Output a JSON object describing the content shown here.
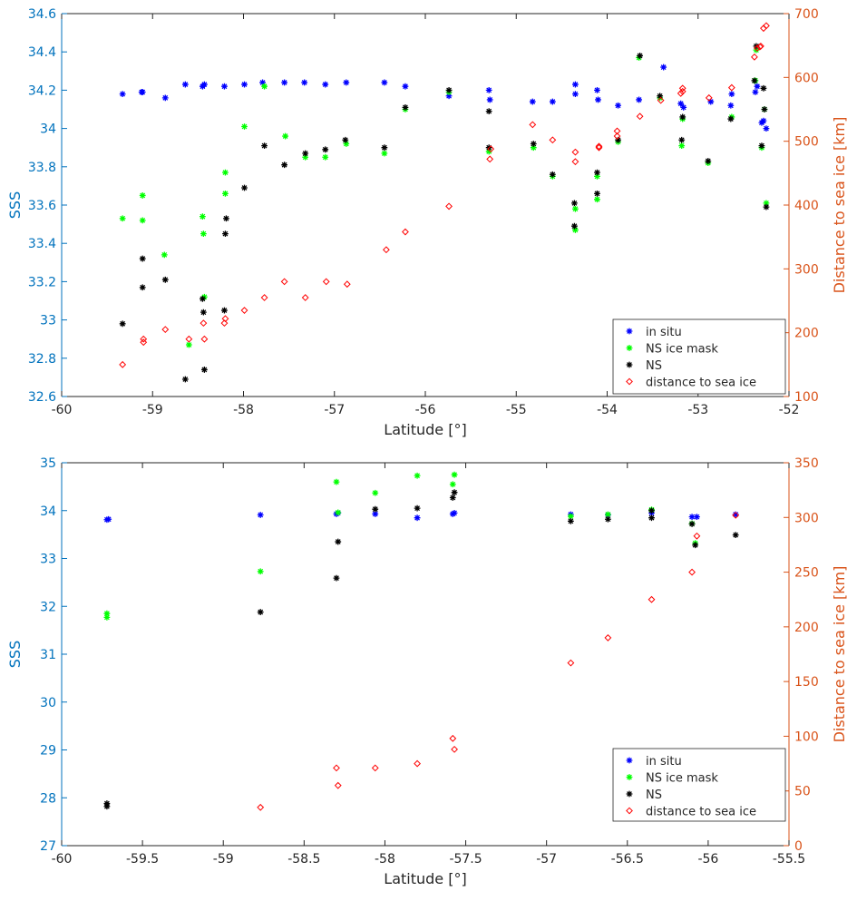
{
  "colors": {
    "in_situ": "#0000ff",
    "ns_ice_mask": "#00ff00",
    "ns": "#000000",
    "distance": "#ff0000",
    "left_axis": "#0072bd",
    "right_axis": "#d95319"
  },
  "chart_data": [
    {
      "type": "scatter",
      "xlabel": "Latitude [°]",
      "ylabel": "SSS",
      "y2label": "Distance to sea ice [km]",
      "xlim": [
        -60,
        -52
      ],
      "ylim": [
        32.6,
        34.6
      ],
      "y2lim": [
        100,
        700
      ],
      "xticks": [
        "-60",
        "-59",
        "-58",
        "-57",
        "-56",
        "-55",
        "-54",
        "-53",
        "-52"
      ],
      "yticks": [
        "32.6",
        "32.8",
        "33",
        "33.2",
        "33.4",
        "33.6",
        "33.8",
        "34",
        "34.2",
        "34.4",
        "34.6"
      ],
      "y2ticks": [
        "100",
        "200",
        "300",
        "400",
        "500",
        "600",
        "700"
      ],
      "legend": [
        "in situ",
        "NS ice mask",
        "NS",
        "distance to sea ice"
      ],
      "legend_location": "bottom-right",
      "grid": false,
      "series": [
        {
          "name": "in situ",
          "axis": "left",
          "marker": "star",
          "color": "#0000ff",
          "points": [
            [
              -59.33,
              34.18
            ],
            [
              -59.12,
              34.19
            ],
            [
              -59.11,
              34.19
            ],
            [
              -58.86,
              34.16
            ],
            [
              -58.64,
              34.23
            ],
            [
              -58.45,
              34.22
            ],
            [
              -58.43,
              34.23
            ],
            [
              -58.21,
              34.22
            ],
            [
              -57.99,
              34.23
            ],
            [
              -57.79,
              34.24
            ],
            [
              -57.55,
              34.24
            ],
            [
              -57.33,
              34.24
            ],
            [
              -57.1,
              34.23
            ],
            [
              -56.87,
              34.24
            ],
            [
              -56.45,
              34.24
            ],
            [
              -56.22,
              34.22
            ],
            [
              -55.74,
              34.17
            ],
            [
              -55.3,
              34.2
            ],
            [
              -55.29,
              34.15
            ],
            [
              -54.82,
              34.14
            ],
            [
              -54.6,
              34.14
            ],
            [
              -54.35,
              34.23
            ],
            [
              -54.35,
              34.18
            ],
            [
              -54.11,
              34.2
            ],
            [
              -54.1,
              34.15
            ],
            [
              -53.88,
              34.12
            ],
            [
              -53.65,
              34.15
            ],
            [
              -53.38,
              34.32
            ],
            [
              -53.19,
              34.13
            ],
            [
              -53.16,
              34.11
            ],
            [
              -52.86,
              34.14
            ],
            [
              -52.64,
              34.12
            ],
            [
              -52.63,
              34.18
            ],
            [
              -52.37,
              34.19
            ],
            [
              -52.35,
              34.22
            ],
            [
              -52.3,
              34.03
            ],
            [
              -52.28,
              34.04
            ],
            [
              -52.25,
              34.0
            ]
          ]
        },
        {
          "name": "NS ice mask",
          "axis": "left",
          "marker": "star",
          "color": "#00ff00",
          "points": [
            [
              -59.33,
              33.53
            ],
            [
              -59.11,
              33.65
            ],
            [
              -59.11,
              33.52
            ],
            [
              -58.87,
              33.34
            ],
            [
              -58.6,
              32.87
            ],
            [
              -58.45,
              33.54
            ],
            [
              -58.44,
              33.45
            ],
            [
              -58.43,
              33.12
            ],
            [
              -58.2,
              33.77
            ],
            [
              -58.2,
              33.66
            ],
            [
              -57.99,
              34.01
            ],
            [
              -57.77,
              34.22
            ],
            [
              -57.54,
              33.96
            ],
            [
              -57.32,
              33.85
            ],
            [
              -57.1,
              33.85
            ],
            [
              -56.87,
              33.92
            ],
            [
              -56.45,
              33.87
            ],
            [
              -56.22,
              34.1
            ],
            [
              -55.74,
              34.19
            ],
            [
              -55.3,
              33.88
            ],
            [
              -54.81,
              33.9
            ],
            [
              -54.6,
              33.75
            ],
            [
              -54.35,
              33.58
            ],
            [
              -54.35,
              33.47
            ],
            [
              -54.11,
              33.75
            ],
            [
              -54.11,
              33.63
            ],
            [
              -53.88,
              33.93
            ],
            [
              -53.65,
              34.37
            ],
            [
              -53.42,
              34.16
            ],
            [
              -53.18,
              33.91
            ],
            [
              -53.17,
              34.05
            ],
            [
              -52.89,
              33.82
            ],
            [
              -52.63,
              34.06
            ],
            [
              -52.37,
              34.25
            ],
            [
              -52.36,
              34.41
            ],
            [
              -52.3,
              33.9
            ],
            [
              -52.27,
              34.1
            ],
            [
              -52.25,
              33.61
            ]
          ]
        },
        {
          "name": "NS",
          "axis": "left",
          "marker": "star",
          "color": "#000000",
          "points": [
            [
              -59.33,
              32.98
            ],
            [
              -59.11,
              33.32
            ],
            [
              -59.11,
              33.17
            ],
            [
              -58.86,
              33.21
            ],
            [
              -58.64,
              32.69
            ],
            [
              -58.45,
              33.11
            ],
            [
              -58.44,
              33.04
            ],
            [
              -58.43,
              32.74
            ],
            [
              -58.21,
              33.05
            ],
            [
              -58.19,
              33.53
            ],
            [
              -58.2,
              33.45
            ],
            [
              -57.99,
              33.69
            ],
            [
              -57.77,
              33.91
            ],
            [
              -57.55,
              33.81
            ],
            [
              -57.32,
              33.87
            ],
            [
              -57.1,
              33.89
            ],
            [
              -56.88,
              33.94
            ],
            [
              -56.45,
              33.9
            ],
            [
              -56.22,
              34.11
            ],
            [
              -55.74,
              34.2
            ],
            [
              -55.3,
              34.09
            ],
            [
              -55.3,
              33.9
            ],
            [
              -54.81,
              33.92
            ],
            [
              -54.6,
              33.76
            ],
            [
              -54.36,
              33.61
            ],
            [
              -54.36,
              33.49
            ],
            [
              -54.11,
              33.77
            ],
            [
              -54.11,
              33.66
            ],
            [
              -53.88,
              33.94
            ],
            [
              -53.64,
              34.38
            ],
            [
              -53.42,
              34.17
            ],
            [
              -53.18,
              33.94
            ],
            [
              -53.17,
              34.06
            ],
            [
              -52.89,
              33.83
            ],
            [
              -52.64,
              34.05
            ],
            [
              -52.38,
              34.25
            ],
            [
              -52.36,
              34.43
            ],
            [
              -52.3,
              33.91
            ],
            [
              -52.28,
              34.21
            ],
            [
              -52.27,
              34.1
            ],
            [
              -52.25,
              33.59
            ]
          ]
        },
        {
          "name": "distance to sea ice",
          "axis": "right",
          "marker": "diamond",
          "color": "#ff0000",
          "points": [
            [
              -59.33,
              150
            ],
            [
              -59.1,
              190
            ],
            [
              -59.1,
              185
            ],
            [
              -58.86,
              205
            ],
            [
              -58.6,
              190
            ],
            [
              -58.44,
              215
            ],
            [
              -58.43,
              190
            ],
            [
              -58.21,
              215
            ],
            [
              -58.2,
              222
            ],
            [
              -57.99,
              235
            ],
            [
              -57.77,
              255
            ],
            [
              -57.55,
              280
            ],
            [
              -57.32,
              255
            ],
            [
              -57.09,
              280
            ],
            [
              -56.86,
              276
            ],
            [
              -56.43,
              330
            ],
            [
              -56.22,
              358
            ],
            [
              -55.74,
              398
            ],
            [
              -55.29,
              472
            ],
            [
              -55.28,
              488
            ],
            [
              -54.82,
              526
            ],
            [
              -54.6,
              502
            ],
            [
              -54.35,
              468
            ],
            [
              -54.35,
              483
            ],
            [
              -54.09,
              492
            ],
            [
              -54.09,
              490
            ],
            [
              -53.89,
              516
            ],
            [
              -53.89,
              508
            ],
            [
              -53.64,
              539
            ],
            [
              -53.41,
              564
            ],
            [
              -53.19,
              575
            ],
            [
              -53.17,
              583
            ],
            [
              -53.17,
              578
            ],
            [
              -52.88,
              568
            ],
            [
              -52.63,
              584
            ],
            [
              -52.38,
              632
            ],
            [
              -52.35,
              646
            ],
            [
              -52.32,
              648
            ],
            [
              -52.31,
              649
            ],
            [
              -52.28,
              677
            ],
            [
              -52.25,
              681
            ]
          ]
        }
      ]
    },
    {
      "type": "scatter",
      "xlabel": "Latitude [°]",
      "ylabel": "SSS",
      "y2label": "Distance to sea ice [km]",
      "xlim": [
        -60,
        -55.5
      ],
      "ylim": [
        27,
        35
      ],
      "y2lim": [
        0,
        350
      ],
      "xticks": [
        "-60",
        "-59.5",
        "-59",
        "-58.5",
        "-58",
        "-57.5",
        "-57",
        "-56.5",
        "-56",
        "-55.5"
      ],
      "yticks": [
        "27",
        "28",
        "29",
        "30",
        "31",
        "32",
        "33",
        "34",
        "35"
      ],
      "y2ticks": [
        "0",
        "50",
        "100",
        "150",
        "200",
        "250",
        "300",
        "350"
      ],
      "legend": [
        "in situ",
        "NS ice mask",
        "NS",
        "distance to sea ice"
      ],
      "legend_location": "bottom-right",
      "grid": false,
      "series": [
        {
          "name": "in situ",
          "axis": "left",
          "marker": "star",
          "color": "#0000ff",
          "points": [
            [
              -59.71,
              33.82
            ],
            [
              -59.72,
              33.81
            ],
            [
              -58.77,
              33.91
            ],
            [
              -58.3,
              33.93
            ],
            [
              -58.29,
              33.95
            ],
            [
              -58.06,
              33.93
            ],
            [
              -57.8,
              33.85
            ],
            [
              -57.58,
              33.93
            ],
            [
              -57.57,
              33.95
            ],
            [
              -56.85,
              33.92
            ],
            [
              -56.62,
              33.91
            ],
            [
              -56.35,
              33.95
            ],
            [
              -56.1,
              33.87
            ],
            [
              -56.07,
              33.87
            ],
            [
              -55.83,
              33.92
            ]
          ]
        },
        {
          "name": "NS ice mask",
          "axis": "left",
          "marker": "star",
          "color": "#00ff00",
          "points": [
            [
              -59.72,
              31.85
            ],
            [
              -59.72,
              31.77
            ],
            [
              -58.77,
              32.73
            ],
            [
              -58.3,
              34.6
            ],
            [
              -58.29,
              33.96
            ],
            [
              -58.06,
              34.37
            ],
            [
              -57.8,
              34.73
            ],
            [
              -57.58,
              34.55
            ],
            [
              -57.57,
              34.75
            ],
            [
              -56.85,
              33.88
            ],
            [
              -56.62,
              33.92
            ],
            [
              -56.35,
              34.02
            ],
            [
              -56.1,
              33.73
            ],
            [
              -56.08,
              33.32
            ]
          ]
        },
        {
          "name": "NS",
          "axis": "left",
          "marker": "star",
          "color": "#000000",
          "points": [
            [
              -59.72,
              27.88
            ],
            [
              -59.72,
              27.82
            ],
            [
              -58.77,
              31.88
            ],
            [
              -58.3,
              32.59
            ],
            [
              -58.29,
              33.35
            ],
            [
              -58.06,
              34.03
            ],
            [
              -57.8,
              34.05
            ],
            [
              -57.58,
              34.27
            ],
            [
              -57.57,
              34.38
            ],
            [
              -56.85,
              33.78
            ],
            [
              -56.62,
              33.82
            ],
            [
              -56.35,
              33.85
            ],
            [
              -56.35,
              34.0
            ],
            [
              -56.1,
              33.72
            ],
            [
              -56.08,
              33.28
            ],
            [
              -55.83,
              33.49
            ]
          ]
        },
        {
          "name": "distance to sea ice",
          "axis": "right",
          "marker": "diamond",
          "color": "#ff0000",
          "points": [
            [
              -58.77,
              35
            ],
            [
              -58.3,
              71
            ],
            [
              -58.29,
              55
            ],
            [
              -58.06,
              71
            ],
            [
              -57.8,
              75
            ],
            [
              -57.58,
              98
            ],
            [
              -57.57,
              88
            ],
            [
              -56.85,
              167
            ],
            [
              -56.62,
              190
            ],
            [
              -56.35,
              225
            ],
            [
              -56.1,
              250
            ],
            [
              -56.07,
              283
            ],
            [
              -55.83,
              302
            ]
          ]
        }
      ]
    }
  ]
}
